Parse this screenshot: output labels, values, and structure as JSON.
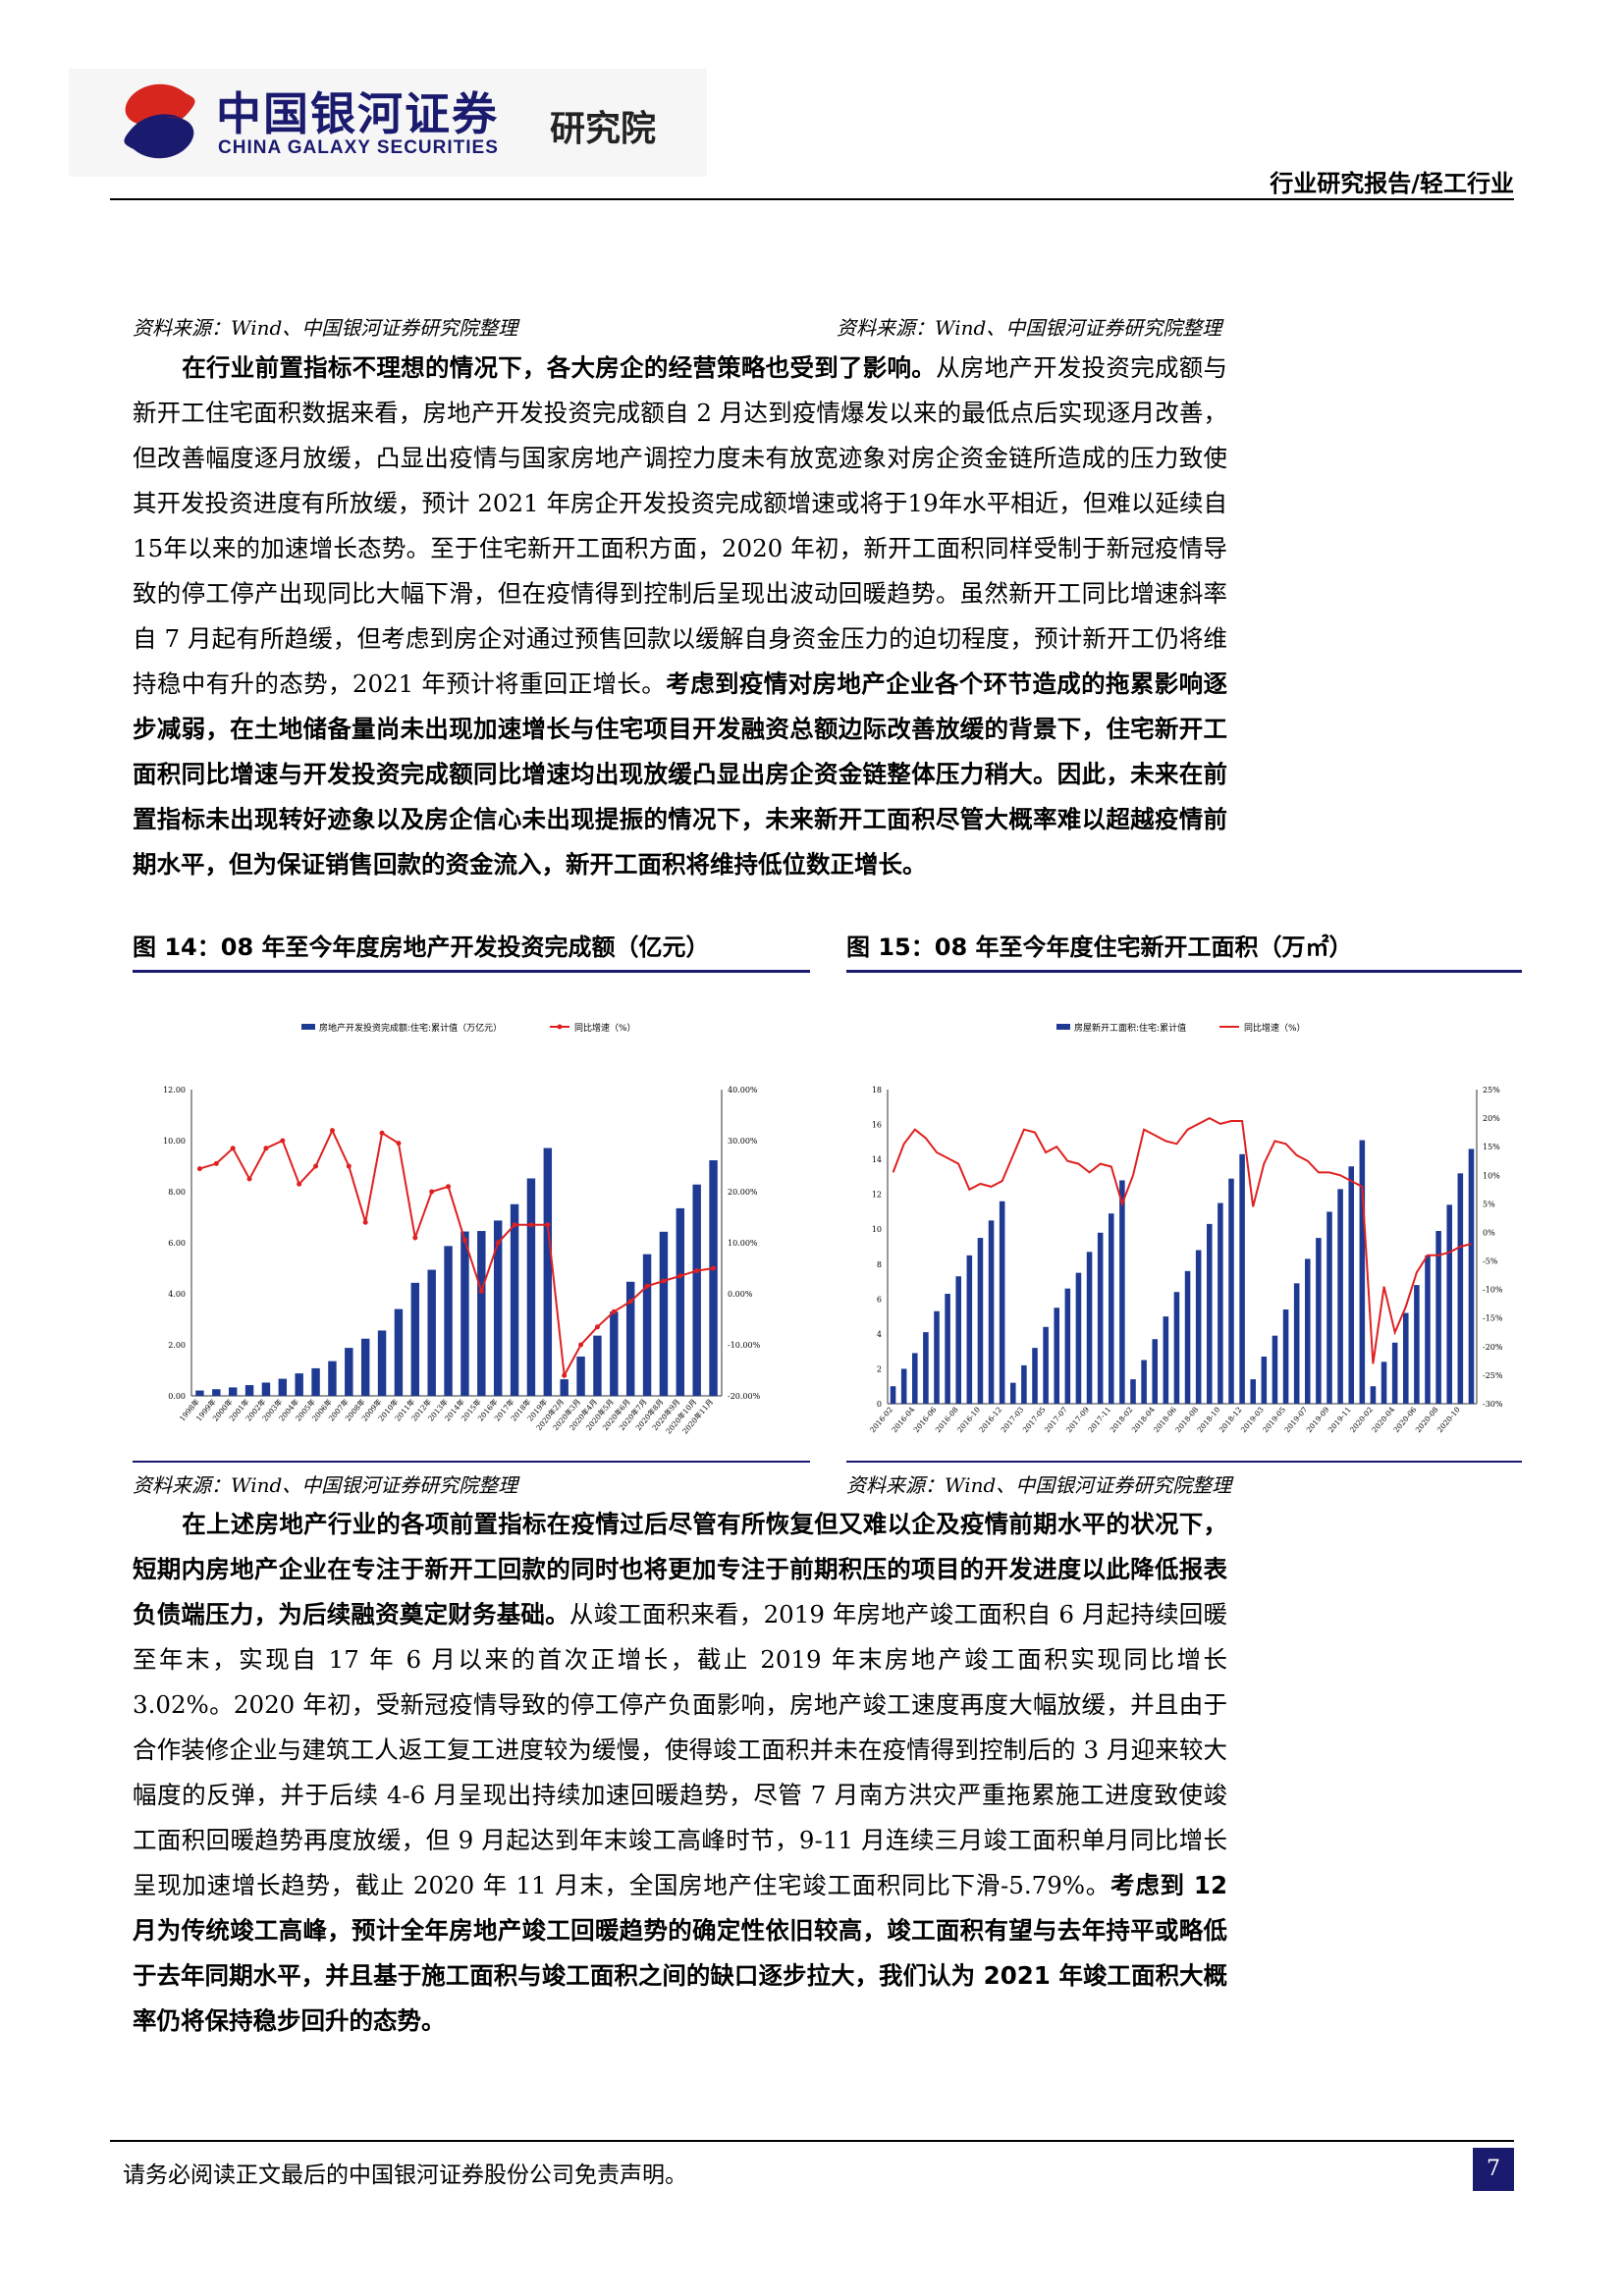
{
  "header": {
    "logo_cn": "中国银河证券",
    "logo_en": "CHINA GALAXY SECURITIES",
    "logo_institute": "研究院",
    "report_type": "行业研究报告/轻工行业"
  },
  "sources": {
    "top_left": "资料来源：Wind、中国银河证券研究院整理",
    "top_right": "资料来源：Wind、中国银河证券研究院整理",
    "bottom_left": "资料来源：Wind、中国银河证券研究院整理",
    "bottom_right": "资料来源：Wind、中国银河证券研究院整理"
  },
  "paragraph1": {
    "bold_lead": "在行业前置指标不理想的情况下，各大房企的经营策略也受到了影响。",
    "body": "从房地产开发投资完成额与新开工住宅面积数据来看，房地产开发投资完成额自 2 月达到疫情爆发以来的最低点后实现逐月改善，但改善幅度逐月放缓，凸显出疫情与国家房地产调控力度未有放宽迹象对房企资金链所造成的压力致使其开发投资进度有所放缓，预计 2021 年房企开发投资完成额增速或将于19年水平相近，但难以延续自15年以来的加速增长态势。至于住宅新开工面积方面，2020 年初，新开工面积同样受制于新冠疫情导致的停工停产出现同比大幅下滑，但在疫情得到控制后呈现出波动回暖趋势。虽然新开工同比增速斜率自 7 月起有所趋缓，但考虑到房企对通过预售回款以缓解自身资金压力的迫切程度，预计新开工仍将维持稳中有升的态势，2021 年预计将重回正增长。",
    "bold_tail": "考虑到疫情对房地产企业各个环节造成的拖累影响逐步减弱，在土地储备量尚未出现加速增长与住宅项目开发融资总额边际改善放缓的背景下，住宅新开工面积同比增速与开发投资完成额同比增速均出现放缓凸显出房企资金链整体压力稍大。因此，未来在前置指标未出现转好迹象以及房企信心未出现提振的情况下，未来新开工面积尽管大概率难以超越疫情前期水平，但为保证销售回款的资金流入，新开工面积将维持低位数正增长。"
  },
  "figure14": {
    "caption": "图 14：08 年至今年度房地产开发投资完成额（亿元）",
    "legend_bar": "房地产开发投资完成额:住宅:累计值（万亿元）",
    "legend_line": "同比增速（%）"
  },
  "figure15": {
    "caption": "图 15：08 年至今年度住宅新开工面积（万㎡）",
    "legend_bar": "房屋新开工面积:住宅:累计值",
    "legend_line": "同比增速（%）"
  },
  "chart_data": [
    {
      "type": "bar",
      "title": "图 14：08 年至今年度房地产开发投资完成额（亿元）",
      "categories": [
        "1998年",
        "1999年",
        "2000年",
        "2001年",
        "2002年",
        "2003年",
        "2004年",
        "2005年",
        "2006年",
        "2007年",
        "2008年",
        "2009年",
        "2010年",
        "2011年",
        "2012年",
        "2013年",
        "2014年",
        "2015年",
        "2016年",
        "2017年",
        "2018年",
        "2019年",
        "2020年2月",
        "2020年3月",
        "2020年4月",
        "2020年5月",
        "2020年6月",
        "2020年7月",
        "2020年8月",
        "2020年9月",
        "2020年10月",
        "2020年11月"
      ],
      "series": [
        {
          "name": "房地产开发投资完成额:住宅:累计值（万亿元）",
          "type": "bar",
          "axis": "left",
          "values": [
            0.21,
            0.26,
            0.33,
            0.42,
            0.52,
            0.67,
            0.88,
            1.08,
            1.36,
            1.88,
            2.24,
            2.56,
            3.4,
            4.43,
            4.94,
            5.87,
            6.44,
            6.46,
            6.87,
            7.51,
            8.52,
            9.71,
            0.65,
            1.54,
            2.36,
            3.3,
            4.47,
            5.55,
            6.43,
            7.35,
            8.28,
            9.23
          ]
        },
        {
          "name": "同比增速（%）",
          "type": "line",
          "axis": "right",
          "values": [
            24.5,
            25.5,
            28.5,
            22.5,
            28.5,
            30,
            21.5,
            25,
            32,
            25,
            14,
            31.5,
            29.5,
            11,
            20,
            21,
            10.5,
            0.5,
            10,
            13.5,
            13.5,
            13.5,
            -16,
            -10,
            -6.5,
            -3.5,
            -1.5,
            1.5,
            2.5,
            3.5,
            4.5,
            5.0
          ]
        }
      ],
      "ylim_left": [
        0,
        12
      ],
      "yticks_left": [
        "0.00",
        "2.00",
        "4.00",
        "6.00",
        "8.00",
        "10.00",
        "12.00"
      ],
      "ylim_right": [
        -20,
        40
      ],
      "yticks_right": [
        "-20.00%",
        "-10.00%",
        "0.00%",
        "10.00%",
        "20.00%",
        "30.00%",
        "40.00%"
      ],
      "legend": "top-center"
    },
    {
      "type": "bar",
      "title": "图 15：08 年至今年度住宅新开工面积（万㎡）",
      "categories": [
        "2016-02",
        "2016-03",
        "2016-04",
        "2016-05",
        "2016-06",
        "2016-07",
        "2016-08",
        "2016-09",
        "2016-10",
        "2016-11",
        "2016-12",
        "2017-02",
        "2017-03",
        "2017-04",
        "2017-05",
        "2017-06",
        "2017-07",
        "2017-08",
        "2017-09",
        "2017-10",
        "2017-11",
        "2017-12",
        "2018-02",
        "2018-03",
        "2018-04",
        "2018-05",
        "2018-06",
        "2018-07",
        "2018-08",
        "2018-09",
        "2018-10",
        "2018-11",
        "2018-12",
        "2019-02",
        "2019-03",
        "2019-04",
        "2019-05",
        "2019-06",
        "2019-07",
        "2019-08",
        "2019-09",
        "2019-10",
        "2019-11",
        "2019-12",
        "2020-02",
        "2020-03",
        "2020-04",
        "2020-05",
        "2020-06",
        "2020-07",
        "2020-08",
        "2020-09",
        "2020-10",
        "2020-11"
      ],
      "x_tick_labels": [
        "2016-02",
        "2016-04",
        "2016-06",
        "2016-08",
        "2016-10",
        "2016-12",
        "2017-03",
        "2017-05",
        "2017-07",
        "2017-09",
        "2017-11",
        "2018-02",
        "2018-04",
        "2018-06",
        "2018-08",
        "2018-10",
        "2018-12",
        "2019-03",
        "2019-05",
        "2019-07",
        "2019-09",
        "2019-11",
        "2020-02",
        "2020-04",
        "2020-06",
        "2020-08",
        "2020-10"
      ],
      "series": [
        {
          "name": "房屋新开工面积:住宅:累计值",
          "type": "bar",
          "axis": "left",
          "values": [
            1.0,
            2.0,
            2.9,
            4.1,
            5.3,
            6.3,
            7.3,
            8.5,
            9.5,
            10.5,
            11.6,
            1.2,
            2.2,
            3.2,
            4.4,
            5.5,
            6.6,
            7.5,
            8.7,
            9.8,
            10.9,
            12.8,
            1.4,
            2.5,
            3.7,
            5.0,
            6.4,
            7.6,
            8.8,
            10.3,
            11.5,
            12.9,
            14.3,
            1.4,
            2.7,
            3.9,
            5.4,
            6.9,
            8.3,
            9.5,
            11.0,
            12.3,
            13.6,
            15.1,
            1.0,
            2.4,
            3.5,
            5.2,
            6.8,
            8.5,
            9.9,
            11.4,
            13.2,
            14.6
          ]
        },
        {
          "name": "同比增速（%）",
          "type": "line",
          "axis": "right",
          "values": [
            10.5,
            15.5,
            18,
            16.5,
            14,
            13,
            12,
            7.5,
            8.5,
            8,
            9,
            13.5,
            18,
            17.5,
            14,
            15,
            12.5,
            12,
            10.5,
            12,
            11.5,
            5,
            10,
            18,
            17,
            16,
            15.5,
            18,
            19,
            20,
            19,
            19.5,
            19.5,
            4.5,
            12,
            16,
            15.5,
            13.5,
            12.5,
            10.5,
            10.5,
            10,
            9,
            8,
            -23,
            -9.5,
            -17.5,
            -13,
            -7,
            -4,
            -4,
            -3.5,
            -2.5,
            -2
          ]
        }
      ],
      "ylim_left": [
        0,
        18
      ],
      "yticks_left": [
        "0",
        "2",
        "4",
        "6",
        "8",
        "10",
        "12",
        "14",
        "16",
        "18"
      ],
      "ylim_right": [
        -30,
        25
      ],
      "yticks_right": [
        "-30%",
        "-25%",
        "-20%",
        "-15%",
        "-10%",
        "-5%",
        "0%",
        "5%",
        "10%",
        "15%",
        "20%",
        "25%"
      ],
      "legend": "top-center"
    }
  ],
  "paragraph2": {
    "bold_lead": "在上述房地产行业的各项前置指标在疫情过后尽管有所恢复但又难以企及疫情前期水平的状况下，短期内房地产企业在专注于新开工回款的同时也将更加专注于前期积压的项目的开发进度以此降低报表负债端压力，为后续融资奠定财务基础。",
    "body": "从竣工面积来看，2019 年房地产竣工面积自 6 月起持续回暖至年末，实现自 17 年 6 月以来的首次正增长，截止 2019 年末房地产竣工面积实现同比增长 3.02%。2020 年初，受新冠疫情导致的停工停产负面影响，房地产竣工速度再度大幅放缓，并且由于合作装修企业与建筑工人返工复工进度较为缓慢，使得竣工面积并未在疫情得到控制后的 3 月迎来较大幅度的反弹，并于后续 4-6 月呈现出持续加速回暖趋势，尽管 7 月南方洪灾严重拖累施工进度致使竣工面积回暖趋势再度放缓，但 9 月起达到年末竣工高峰时节，9-11 月连续三月竣工面积单月同比增长呈现加速增长趋势，截止 2020 年 11 月末，全国房地产住宅竣工面积同比下滑-5.79%。",
    "bold_tail": "考虑到 12 月为传统竣工高峰，预计全年房地产竣工回暖趋势的确定性依旧较高，竣工面积有望与去年持平或略低于去年同期水平，并且基于施工面积与竣工面积之间的缺口逐步拉大，我们认为 2021 年竣工面积大概率仍将保持稳步回升的态势。"
  },
  "footer": {
    "disclaimer": "请务必阅读正文最后的中国银河证券股份公司免责声明。",
    "page_number": "7"
  },
  "colors": {
    "bar": "#1f3a93",
    "line": "#e02020",
    "brand": "#1a1a6e",
    "logo_red": "#d7261e"
  }
}
